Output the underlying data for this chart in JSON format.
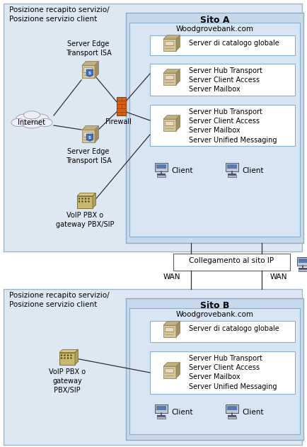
{
  "bg_color": "#ffffff",
  "outer_box_fill": "#dde8f3",
  "outer_box_edge": "#9ab5cc",
  "sito_box_fill": "#c8d8eb",
  "sito_box_edge": "#8aadcc",
  "wg_box_fill": "#d8e6f4",
  "wg_box_edge": "#8aadcc",
  "white_box_fill": "#ffffff",
  "white_box_edge": "#8aadcc",
  "line_color": "#303030",
  "firewall_fill": "#d06010",
  "firewall_edge": "#803000",
  "title_sito_a": "Sito A",
  "title_sito_b": "Sito B",
  "woodgrove": "Woodgrovebank.com",
  "posizione_text": "Posizione recapito servizio/\nPosizione servizio client",
  "internet_text": "Internet",
  "server_edge_top": "Server Edge\nTransport ISA",
  "server_edge_bot": "Server Edge\nTransport ISA",
  "firewall_text": "Firewall",
  "voip_a": "VoIP PBX o\ngateway PBX/SIP",
  "voip_b": "VoIP PBX o\ngateway\nPBX/SIP",
  "catalogo_a": "Server di catalogo globale",
  "catalogo_b": "Server di catalogo globale",
  "box1_text": "Server Hub Transport\nServer Client Access\nServer Mailbox",
  "box2_text": "Server Hub Transport\nServer Client Access\nServer Mailbox\nServer Unified Messaging",
  "box3_text": "Server Hub Transport\nServer Client Access\nServer Mailbox\nServer Unified Messaging",
  "client_text": "Client",
  "collegamento_text": "Collegamento al sito IP",
  "wan_text": "WAN",
  "server_tan": "#d4c89a",
  "server_tan_dark": "#a09060",
  "server_tan_mid": "#c0b080",
  "server_shadow": "#908060",
  "shield_blue": "#4070c0",
  "shield_edge": "#2050a0",
  "computer_body": "#c8c8d8",
  "computer_screen": "#5878b8",
  "computer_dark": "#404060",
  "cloud_fill": "#eeeef8",
  "cloud_edge": "#9898a8"
}
